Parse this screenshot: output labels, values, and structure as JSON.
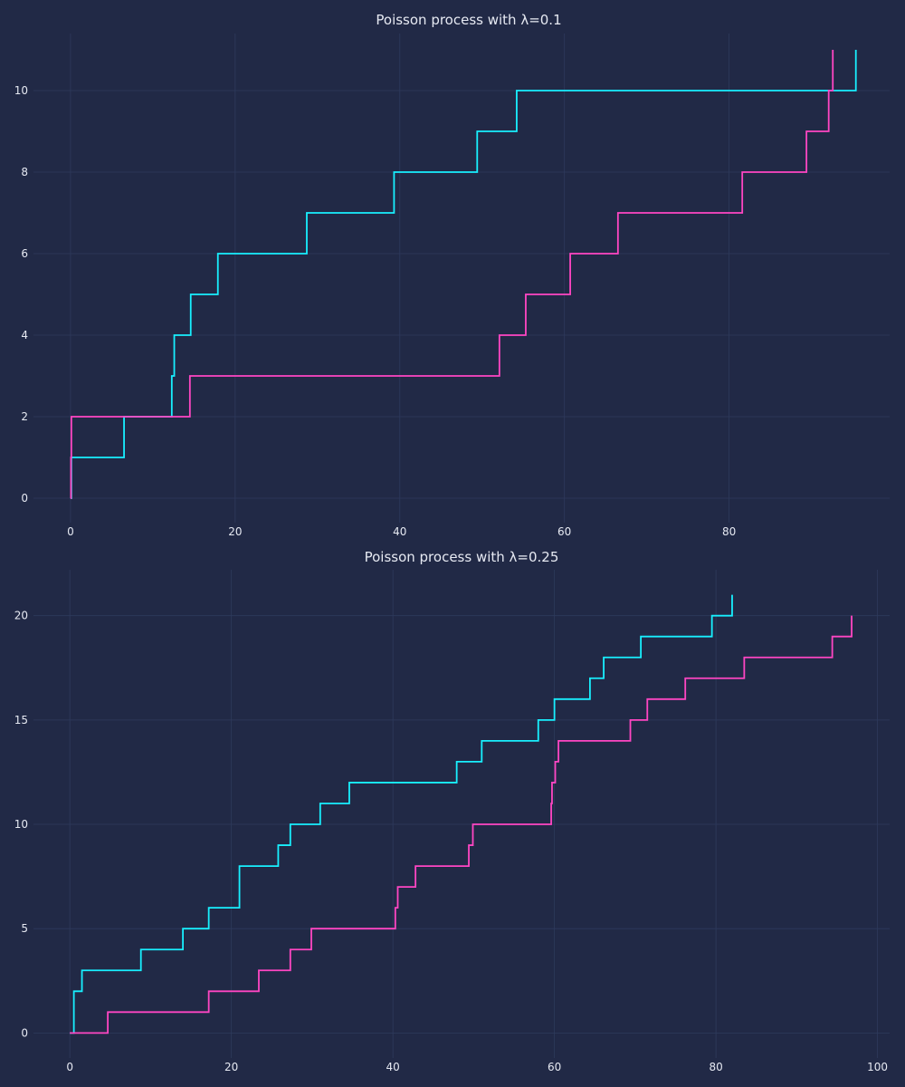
{
  "chart_data": [
    {
      "type": "line",
      "step": "post",
      "title": "Poisson process with λ=0.1",
      "xlabel": "",
      "ylabel": "",
      "xlim": [
        -4.5,
        99.5
      ],
      "ylim": [
        -0.6,
        11.4
      ],
      "xticks": [
        0,
        20,
        40,
        60,
        80
      ],
      "yticks": [
        0,
        2,
        4,
        6,
        8,
        10
      ],
      "grid": true,
      "colors": {
        "background": "#212946",
        "grid": "#2e3a5c",
        "text": "#e6e9f2"
      },
      "series": [
        {
          "color": "#18f0ff",
          "x": [
            0,
            0.1,
            6.5,
            12.3,
            12.6,
            14.6,
            17.9,
            28.7,
            39.3,
            49.4,
            54.2,
            95.4
          ],
          "y": [
            0,
            1,
            2,
            3,
            4,
            5,
            6,
            7,
            8,
            9,
            10,
            11
          ]
        },
        {
          "color": "#ff46c3",
          "x": [
            0,
            0.05,
            0.1,
            14.5,
            52.1,
            55.3,
            60.7,
            66.5,
            81.6,
            89.4,
            92.1,
            92.6
          ],
          "y": [
            0,
            1,
            2,
            3,
            4,
            5,
            6,
            7,
            8,
            9,
            10,
            11
          ]
        }
      ]
    },
    {
      "type": "line",
      "step": "post",
      "title": "Poisson process with λ=0.25",
      "xlabel": "",
      "ylabel": "",
      "xlim": [
        -4.5,
        101.5
      ],
      "ylim": [
        -1.2,
        22.2
      ],
      "xticks": [
        0,
        20,
        40,
        60,
        80,
        100
      ],
      "yticks": [
        0,
        5,
        10,
        15,
        20
      ],
      "grid": true,
      "colors": {
        "background": "#212946",
        "grid": "#2e3a5c",
        "text": "#e6e9f2"
      },
      "series": [
        {
          "color": "#18f0ff",
          "x": [
            0,
            0.5,
            1.5,
            8.8,
            14.0,
            17.2,
            21.0,
            25.8,
            27.3,
            31.0,
            34.6,
            47.9,
            51.0,
            58.0,
            60.0,
            64.4,
            66.1,
            70.7,
            79.5,
            82.0
          ],
          "y": [
            0,
            2,
            3,
            4,
            5,
            6,
            8,
            9,
            10,
            11,
            12,
            13,
            14,
            15,
            16,
            17,
            18,
            19,
            20,
            21
          ]
        },
        {
          "color": "#ff46c3",
          "x": [
            0,
            4.7,
            17.2,
            23.4,
            27.3,
            29.9,
            40.3,
            40.6,
            42.8,
            49.4,
            49.9,
            59.6,
            59.7,
            60.1,
            60.5,
            69.4,
            71.5,
            76.2,
            83.5,
            94.4,
            96.8
          ],
          "y": [
            0,
            1,
            2,
            3,
            4,
            5,
            6,
            7,
            8,
            9,
            10,
            11,
            12,
            13,
            14,
            15,
            16,
            17,
            18,
            19,
            20
          ]
        }
      ]
    }
  ]
}
